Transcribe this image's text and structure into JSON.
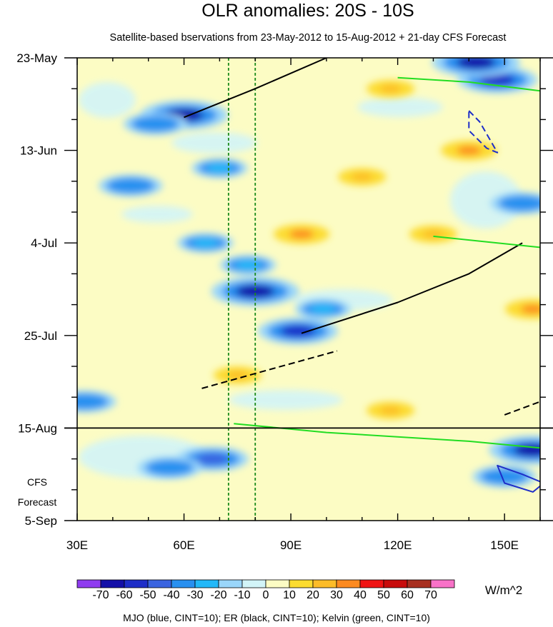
{
  "chart_data": {
    "type": "heatmap",
    "title": "OLR anomalies: 20S - 10S",
    "subtitle": "Satellite-based bservations from 23-May-2012 to 15-Aug-2012 + 21-day CFS Forecast",
    "x_range": [
      30,
      160
    ],
    "x_ticks": [
      {
        "value": 30,
        "label": "30E"
      },
      {
        "value": 60,
        "label": "60E"
      },
      {
        "value": 90,
        "label": "90E"
      },
      {
        "value": 120,
        "label": "120E"
      },
      {
        "value": 150,
        "label": "150E"
      }
    ],
    "y_range_days": [
      0,
      105
    ],
    "y_ticks": [
      {
        "day": 0,
        "label": "23-May"
      },
      {
        "day": 21,
        "label": "13-Jun"
      },
      {
        "day": 42,
        "label": "4-Jul"
      },
      {
        "day": 63,
        "label": "25-Jul"
      },
      {
        "day": 84,
        "label": "15-Aug"
      },
      {
        "day": 105,
        "label": "5-Sep"
      }
    ],
    "forecast_label": [
      "CFS",
      "Forecast"
    ],
    "forecast_start_day": 84,
    "reference_longitudes": [
      72.5,
      80
    ],
    "colorbar": {
      "levels": [
        -70,
        -60,
        -50,
        -40,
        -30,
        -20,
        -10,
        0,
        10,
        20,
        30,
        40,
        50,
        60,
        70
      ],
      "colors": [
        "#8f3cf0",
        "#1410a8",
        "#1e2ec8",
        "#3a64e0",
        "#2890f0",
        "#22b8f8",
        "#9ad6fa",
        "#d2f4f8",
        "#fcfcc4",
        "#fcdc30",
        "#fcbc28",
        "#fc8a20",
        "#f01414",
        "#c80c0c",
        "#a83020",
        "#f872c8"
      ],
      "units": "W/m^2"
    },
    "anomalies": [
      {
        "lon": 60,
        "day": 13,
        "value": -70
      },
      {
        "lon": 52,
        "day": 15,
        "value": -40
      },
      {
        "lon": 45,
        "day": 29,
        "value": -40
      },
      {
        "lon": 70,
        "day": 25,
        "value": -30
      },
      {
        "lon": 66,
        "day": 42,
        "value": -30
      },
      {
        "lon": 80,
        "day": 53,
        "value": -70
      },
      {
        "lon": 78,
        "day": 47,
        "value": -30
      },
      {
        "lon": 92,
        "day": 62,
        "value": -60
      },
      {
        "lon": 99,
        "day": 57,
        "value": -30
      },
      {
        "lon": 68,
        "day": 91,
        "value": -50
      },
      {
        "lon": 56,
        "day": 93,
        "value": -40
      },
      {
        "lon": 32,
        "day": 78,
        "value": -40
      },
      {
        "lon": 148,
        "day": 5,
        "value": -60
      },
      {
        "lon": 142,
        "day": 1,
        "value": -70
      },
      {
        "lon": 155,
        "day": 33,
        "value": -40
      },
      {
        "lon": 158,
        "day": 89,
        "value": -70
      },
      {
        "lon": 150,
        "day": 95,
        "value": -40
      },
      {
        "lon": 93,
        "day": 40,
        "value": 30
      },
      {
        "lon": 140,
        "day": 21,
        "value": 30
      },
      {
        "lon": 118,
        "day": 7,
        "value": 20
      },
      {
        "lon": 118,
        "day": 80,
        "value": 20
      },
      {
        "lon": 110,
        "day": 27,
        "value": 20
      },
      {
        "lon": 75,
        "day": 72,
        "value": 20
      },
      {
        "lon": 158,
        "day": 57,
        "value": 30
      },
      {
        "lon": 130,
        "day": 40,
        "value": 20
      }
    ],
    "contours": [
      {
        "name": "MJO",
        "color": "#1e2ec8",
        "dashed": true,
        "points": [
          [
            140,
            12
          ],
          [
            143,
            14.5
          ],
          [
            148,
            21.5
          ],
          [
            145,
            20.5
          ],
          [
            140,
            16.5
          ]
        ]
      },
      {
        "name": "MJO",
        "color": "#1e2ec8",
        "dashed": false,
        "points": [
          [
            148,
            92.5
          ],
          [
            155,
            94.5
          ],
          [
            161,
            96.5
          ],
          [
            158,
            98.5
          ],
          [
            150,
            96.5
          ]
        ]
      },
      {
        "name": "ER",
        "color": "#000000",
        "dashed": false,
        "points": [
          [
            60,
            13.5
          ],
          [
            80,
            7
          ],
          [
            100,
            0
          ]
        ]
      },
      {
        "name": "ER",
        "color": "#000000",
        "dashed": false,
        "points": [
          [
            93,
            62.5
          ],
          [
            120,
            55.5
          ],
          [
            140,
            49
          ],
          [
            155,
            42
          ]
        ]
      },
      {
        "name": "ER",
        "color": "#000000",
        "dashed": true,
        "points": [
          [
            65,
            75
          ],
          [
            85,
            70.5
          ],
          [
            103,
            66.5
          ]
        ]
      },
      {
        "name": "ER",
        "color": "#000000",
        "dashed": true,
        "points": [
          [
            150,
            81
          ],
          [
            160,
            78
          ]
        ]
      },
      {
        "name": "Kelvin",
        "color": "#22dd22",
        "dashed": false,
        "points": [
          [
            74,
            83
          ],
          [
            100,
            85
          ],
          [
            120,
            86
          ],
          [
            140,
            87
          ],
          [
            160,
            88.5
          ]
        ]
      },
      {
        "name": "Kelvin",
        "color": "#22dd22",
        "dashed": false,
        "points": [
          [
            130,
            40.5
          ],
          [
            148,
            42
          ],
          [
            160,
            43
          ]
        ]
      },
      {
        "name": "Kelvin",
        "color": "#22dd22",
        "dashed": false,
        "points": [
          [
            120,
            4.5
          ],
          [
            140,
            5.5
          ],
          [
            160,
            7.5
          ]
        ]
      }
    ],
    "legend_note": "MJO (blue, CINT=10); ER (black, CINT=10); Kelvin (green, CINT=10)"
  }
}
